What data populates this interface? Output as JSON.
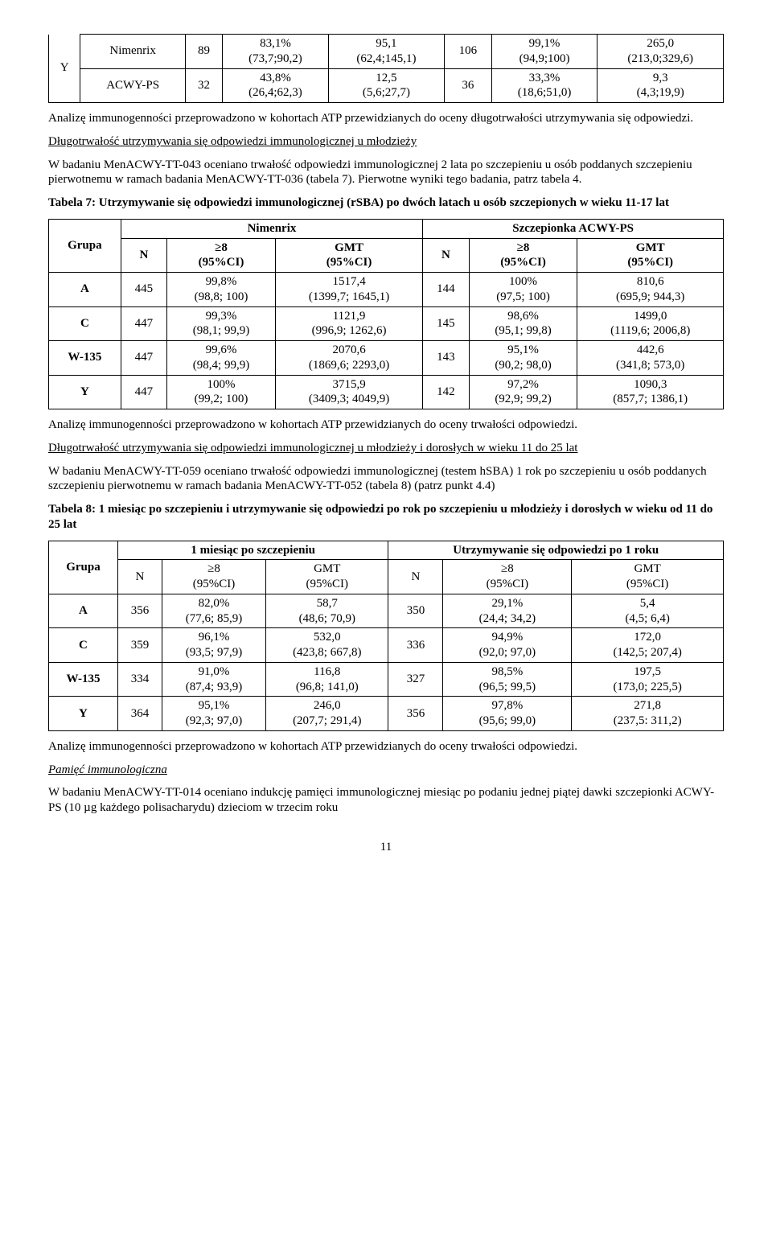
{
  "table0": {
    "rows": [
      {
        "g": "Y",
        "c": [
          {
            "l": "Nimenrix"
          },
          {
            "l": "89",
            "rs": 2
          },
          {
            "t": "83,1%",
            "b": "(73,7;90,2)"
          },
          {
            "t": "95,1",
            "b": "(62,4;145,1)"
          },
          {
            "l": "106",
            "rs": 2
          },
          {
            "t": "99,1%",
            "b": "(94,9;100)"
          },
          {
            "t": "265,0",
            "b": "(213,0;329,6)"
          }
        ]
      },
      {
        "g": "",
        "c": [
          {
            "l": "ACWY-PS"
          },
          {
            "l": "32",
            "rs": 2
          },
          {
            "t": "43,8%",
            "b": "(26,4;62,3)"
          },
          {
            "t": "12,5",
            "b": "(5,6;27,7)"
          },
          {
            "l": "36",
            "rs": 2
          },
          {
            "t": "33,3%",
            "b": "(18,6;51,0)"
          },
          {
            "t": "9,3",
            "b": "(4,3;19,9)"
          }
        ]
      }
    ]
  },
  "p1": "Analizę immunogenności przeprowadzono w kohortach ATP przewidzianych do oceny długotrwałości utrzymywania się odpowiedzi.",
  "h1": "Długotrwałość utrzymywania się odpowiedzi immunologicznej u młodzieży",
  "p2": "W badaniu MenACWY-TT-043 oceniano trwałość odpowiedzi immunologicznej 2 lata po szczepieniu u osób poddanych szczepieniu pierwotnemu w ramach badania MenACWY-TT-036 (tabela 7). Pierwotne wyniki tego badania, patrz tabela 4.",
  "t7title": "Tabela 7: Utrzymywanie się odpowiedzi immunologicznej (rSBA) po dwóch latach u osób szczepionych w wieku 11-17 lat",
  "t7": {
    "h1": {
      "grupa": "Grupa",
      "nim": "Nimenrix",
      "acwy": "Szczepionka ACWY-PS"
    },
    "h2": {
      "n": "N",
      "ge8": "≥8",
      "ge8ci": "(95%CI)",
      "gmt": "GMT",
      "gmtci": "(95%CI)"
    },
    "rows": [
      {
        "g": "A",
        "n1": "445",
        "a1": "99,8%",
        "a1b": "(98,8; 100)",
        "g1": "1517,4",
        "g1b": "(1399,7; 1645,1)",
        "n2": "144",
        "a2": "100%",
        "a2b": "(97,5; 100)",
        "g2": "810,6",
        "g2b": "(695,9; 944,3)"
      },
      {
        "g": "C",
        "n1": "447",
        "a1": "99,3%",
        "a1b": "(98,1; 99,9)",
        "g1": "1121,9",
        "g1b": "(996,9; 1262,6)",
        "n2": "145",
        "a2": "98,6%",
        "a2b": "(95,1; 99,8)",
        "g2": "1499,0",
        "g2b": "(1119,6; 2006,8)"
      },
      {
        "g": "W-135",
        "n1": "447",
        "a1": "99,6%",
        "a1b": "(98,4; 99,9)",
        "g1": "2070,6",
        "g1b": "(1869,6; 2293,0)",
        "n2": "143",
        "a2": "95,1%",
        "a2b": "(90,2; 98,0)",
        "g2": "442,6",
        "g2b": "(341,8; 573,0)"
      },
      {
        "g": "Y",
        "n1": "447",
        "a1": "100%",
        "a1b": "(99,2; 100)",
        "g1": "3715,9",
        "g1b": "(3409,3; 4049,9)",
        "n2": "142",
        "a2": "97,2%",
        "a2b": "(92,9; 99,2)",
        "g2": "1090,3",
        "g2b": "(857,7; 1386,1)"
      }
    ]
  },
  "p3": "Analizę immunogenności przeprowadzono w kohortach ATP przewidzianych do oceny trwałości odpowiedzi.",
  "h2": "Długotrwałość utrzymywania się odpowiedzi immunologicznej u młodzieży i dorosłych w wieku 11 do 25 lat",
  "p4": "W badaniu MenACWY-TT-059 oceniano trwałość odpowiedzi immunologicznej (testem hSBA) 1 rok po szczepieniu u osób poddanych szczepieniu pierwotnemu w ramach badania MenACWY-TT-052 (tabela 8) (patrz punkt 4.4)",
  "t8title": "Tabela 8: 1 miesiąc po szczepieniu i utrzymywanie się odpowiedzi po rok po szczepieniu u młodzieży i dorosłych w wieku od 11 do 25 lat",
  "t8": {
    "h1": {
      "grupa": "Grupa",
      "c1": "1 miesiąc po szczepieniu",
      "c2": "Utrzymywanie się odpowiedzi po 1 roku"
    },
    "h2": {
      "n": "N",
      "ge8": "≥8",
      "ge8ci": "(95%CI)",
      "gmt": "GMT",
      "gmtci": "(95%CI)"
    },
    "rows": [
      {
        "g": "A",
        "n1": "356",
        "a1": "82,0%",
        "a1b": "(77,6; 85,9)",
        "g1": "58,7",
        "g1b": "(48,6; 70,9)",
        "n2": "350",
        "a2": "29,1%",
        "a2b": "(24,4; 34,2)",
        "g2": "5,4",
        "g2b": "(4,5; 6,4)"
      },
      {
        "g": "C",
        "n1": "359",
        "a1": "96,1%",
        "a1b": "(93,5; 97,9)",
        "g1": "532,0",
        "g1b": "(423,8; 667,8)",
        "n2": "336",
        "a2": "94,9%",
        "a2b": "(92,0; 97,0)",
        "g2": "172,0",
        "g2b": "(142,5; 207,4)"
      },
      {
        "g": "W-135",
        "n1": "334",
        "a1": "91,0%",
        "a1b": "(87,4; 93,9)",
        "g1": "116,8",
        "g1b": "(96,8; 141,0)",
        "n2": "327",
        "a2": "98,5%",
        "a2b": "(96,5; 99,5)",
        "g2": "197,5",
        "g2b": "(173,0; 225,5)"
      },
      {
        "g": "Y",
        "n1": "364",
        "a1": "95,1%",
        "a1b": "(92,3; 97,0)",
        "g1": "246,0",
        "g1b": "(207,7; 291,4)",
        "n2": "356",
        "a2": "97,8%",
        "a2b": "(95,6; 99,0)",
        "g2": "271,8",
        "g2b": "(237,5: 311,2)"
      }
    ]
  },
  "p5": "Analizę immunogenności przeprowadzono w kohortach ATP przewidzianych do oceny trwałości odpowiedzi.",
  "h3": "Pamięć immunologiczna",
  "p6": "W badaniu MenACWY-TT-014 oceniano indukcję pamięci immunologicznej miesiąc po podaniu jednej piątej dawki szczepionki ACWY-PS (10 µg każdego polisacharydu) dzieciom w trzecim roku",
  "pagenum": "11"
}
